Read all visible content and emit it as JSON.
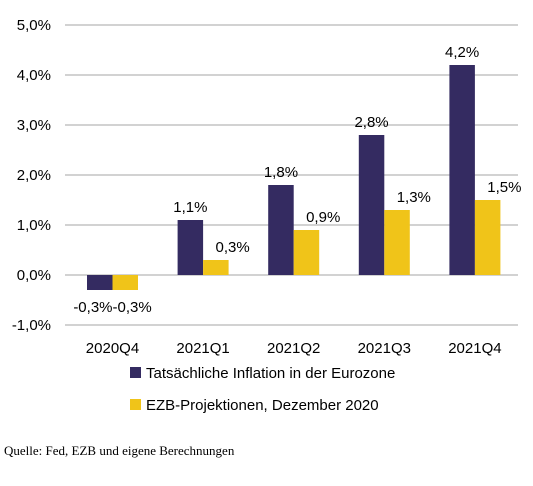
{
  "chart_data": {
    "type": "bar",
    "categories": [
      "2020Q4",
      "2021Q1",
      "2021Q2",
      "2021Q3",
      "2021Q4"
    ],
    "series": [
      {
        "name": "Tatsächliche Inflation in der Eurozone",
        "values": [
          -0.3,
          1.1,
          1.8,
          2.8,
          4.2
        ],
        "labels": [
          "-0,3%",
          "1,1%",
          "1,8%",
          "2,8%",
          "4,2%"
        ],
        "color": "#342b61"
      },
      {
        "name": "EZB-Projektionen, Dezember 2020",
        "values": [
          -0.3,
          0.3,
          0.9,
          1.3,
          1.5
        ],
        "labels": [
          "-0,3%",
          "0,3%",
          "0,9%",
          "1,3%",
          "1,5%"
        ],
        "color": "#f0c419"
      }
    ],
    "ylim": [
      -1.0,
      5.0
    ],
    "yticks": [
      5.0,
      4.0,
      3.0,
      2.0,
      1.0,
      0.0,
      -1.0
    ],
    "ytick_labels": [
      "5,0%",
      "4,0%",
      "3,0%",
      "2,0%",
      "1,0%",
      "0,0%",
      "-1,0%"
    ],
    "grid": true,
    "legend_position": "bottom"
  },
  "source": "Quelle: Fed, EZB und eigene Berechnungen"
}
